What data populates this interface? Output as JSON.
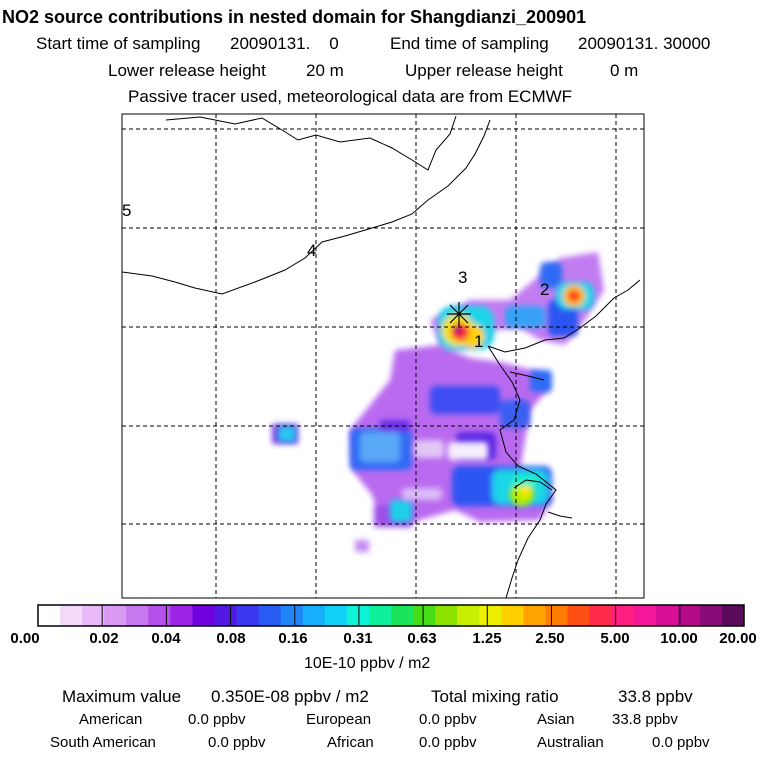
{
  "header": {
    "title": "NO2 source contributions in nested domain for Shangdianzi_200901",
    "start_label": "Start time of sampling",
    "start_value": "20090131.    0",
    "end_label": "End time of sampling",
    "end_value": "20090131. 30000",
    "lower_label": "Lower release height",
    "lower_value": "20 m",
    "upper_label": "Upper release height",
    "upper_value": "0 m",
    "note": "Passive tracer used, meteorological data are from ECMWF"
  },
  "map": {
    "region_labels": [
      "1",
      "2",
      "3",
      "4",
      "5"
    ]
  },
  "colorbar": {
    "colors": [
      "#ffffff",
      "#f4d9fb",
      "#e9b9f7",
      "#d99af3",
      "#c878ef",
      "#b550ea",
      "#9d24e6",
      "#7300e0",
      "#5218e6",
      "#3c38f0",
      "#2a5cf4",
      "#1f86f8",
      "#17aefb",
      "#10d2f6",
      "#0ef2d8",
      "#10ef9c",
      "#1ae45a",
      "#47dc18",
      "#8ee200",
      "#c8ee00",
      "#ecf000",
      "#ffd000",
      "#ffa300",
      "#ff7d00",
      "#ff4f14",
      "#ff2a4a",
      "#ff1f80",
      "#f5179a",
      "#d80f95",
      "#b30a88",
      "#8a0b78",
      "#5c0a5a"
    ],
    "tick_labels": [
      "0.00",
      "0.02",
      "0.04",
      "0.08",
      "0.16",
      "0.31",
      "0.63",
      "1.25",
      "2.50",
      "5.00",
      "10.00",
      "20.00"
    ],
    "units": "10E-10 ppbv / m2"
  },
  "summary": {
    "max_label": "Maximum value",
    "max_value": "0.350E-08 ppbv / m2",
    "total_label": "Total mixing ratio",
    "total_value": "33.8 ppbv",
    "regions": [
      {
        "name": "American",
        "value": "0.0 ppbv"
      },
      {
        "name": "European",
        "value": "0.0 ppbv"
      },
      {
        "name": "Asian",
        "value": "33.8 ppbv"
      },
      {
        "name": "South American",
        "value": "0.0 ppbv"
      },
      {
        "name": "African",
        "value": "0.0 ppbv"
      },
      {
        "name": "Australian",
        "value": "0.0 ppbv"
      }
    ]
  }
}
